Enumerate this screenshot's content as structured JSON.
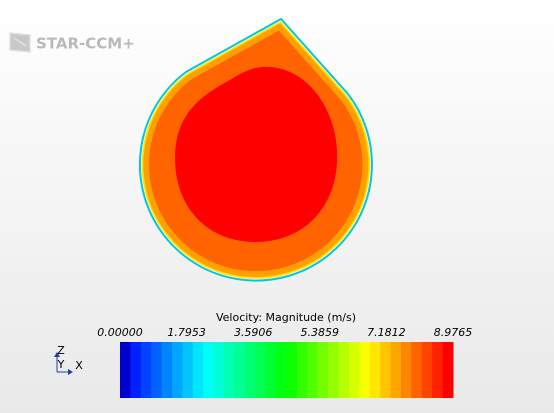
{
  "logo": "STAR-CCM+",
  "triad": {
    "z": "Z",
    "y": "Y",
    "x": "X"
  },
  "colorbar": {
    "title": "Velocity: Magnitude (m/s)",
    "ticks": [
      "0.00000",
      "1.7953",
      "3.5906",
      "5.3859",
      "7.1812",
      "8.9765"
    ]
  }
}
